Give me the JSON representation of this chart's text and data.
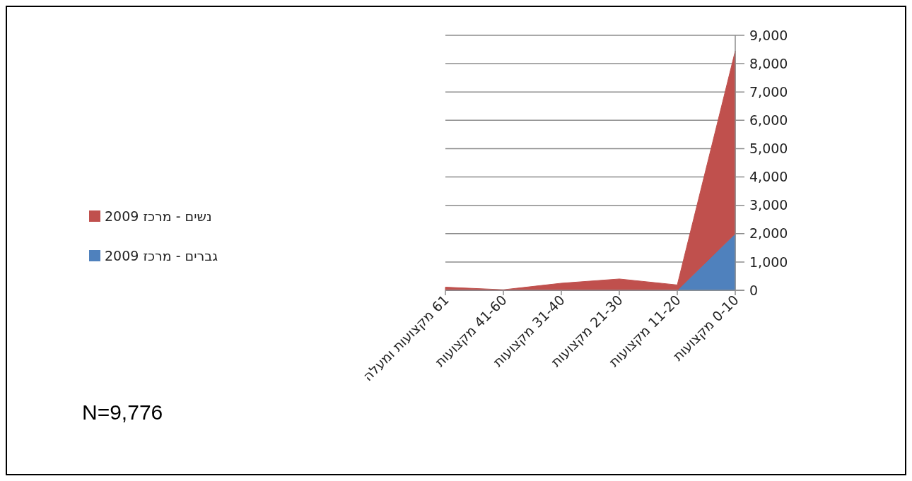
{
  "chart_data": {
    "type": "area",
    "stacked": true,
    "categories": [
      "61 מקצועות ומעלה",
      "41-60 מקצועות",
      "31-40 מקצועות",
      "21-30 מקצועות",
      "11-20 מקצועות",
      "0-10 מקצועות"
    ],
    "series": [
      {
        "name": "גברים - מרכז 2009",
        "color": "#4f81bd",
        "values": [
          0,
          0,
          0,
          0,
          0,
          2000
        ]
      },
      {
        "name": "נשים - מרכז 2009",
        "color": "#c0504d",
        "values": [
          110,
          20,
          250,
          400,
          190,
          6450
        ]
      }
    ],
    "ylim": [
      0,
      9000
    ],
    "yticks": [
      {
        "value": 0,
        "label": "0"
      },
      {
        "value": 1000,
        "label": "1,000"
      },
      {
        "value": 2000,
        "label": "2,000"
      },
      {
        "value": 3000,
        "label": "3,000"
      },
      {
        "value": 4000,
        "label": "4,000"
      },
      {
        "value": 5000,
        "label": "5,000"
      },
      {
        "value": 6000,
        "label": "6,000"
      },
      {
        "value": 7000,
        "label": "7,000"
      },
      {
        "value": 8000,
        "label": "8,000"
      },
      {
        "value": 9000,
        "label": "9,000"
      }
    ],
    "grid": "y",
    "legend": "left",
    "annotations": [
      "N=9,776"
    ]
  }
}
